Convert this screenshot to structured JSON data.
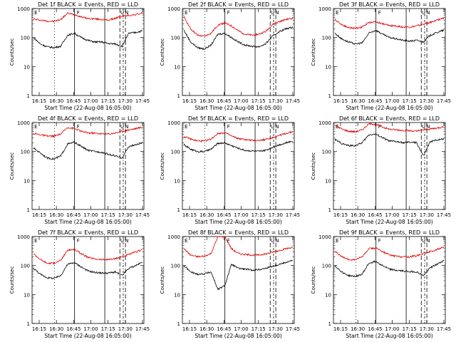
{
  "chart_data": [
    {
      "type": "line",
      "title": "Det 1f BLACK = Events, RED = LLD",
      "xlabel": "Start Time (22-Aug-08 16:05:00)",
      "ylabel": "Counts/sec",
      "yscale": "log",
      "ylim": [
        1,
        1000
      ],
      "xticks": [
        "16:15",
        "16:30",
        "16:45",
        "17:00",
        "17:15",
        "17:30",
        "17:45"
      ],
      "yticks": [
        "1",
        "10",
        "100",
        "1000"
      ],
      "markers": [
        "E",
        "F",
        "U",
        "N"
      ],
      "series": [
        {
          "color": "#e00000",
          "values": [
            430,
            400,
            370,
            360,
            420,
            690,
            620,
            520,
            450,
            440,
            420,
            400,
            460,
            540,
            580,
            620,
            700
          ]
        },
        {
          "color": "#000000",
          "values": [
            100,
            60,
            48,
            45,
            50,
            120,
            140,
            100,
            80,
            70,
            70,
            62,
            60,
            50,
            140,
            150,
            170
          ]
        }
      ]
    },
    {
      "type": "line",
      "title": "Det 2f BLACK = Events, RED = LLD",
      "xlabel": "Start Time (22-Aug-08 16:05:00)",
      "ylabel": "Counts/sec",
      "yscale": "log",
      "ylim": [
        1,
        1000
      ],
      "xticks": [
        "16:15",
        "16:30",
        "16:45",
        "17:00",
        "17:15",
        "17:30",
        "17:45"
      ],
      "yticks": [
        "1",
        "10",
        "100",
        "1000"
      ],
      "markers": [
        "E",
        "F",
        "U",
        "N"
      ],
      "series": [
        {
          "color": "#e00000",
          "values": [
            520,
            200,
            120,
            110,
            140,
            270,
            320,
            250,
            170,
            130,
            120,
            130,
            160,
            280,
            350,
            420,
            460
          ]
        },
        {
          "color": "#000000",
          "values": [
            180,
            70,
            45,
            40,
            55,
            130,
            140,
            100,
            70,
            55,
            50,
            48,
            60,
            110,
            160,
            200,
            230
          ]
        }
      ]
    },
    {
      "type": "line",
      "title": "Det 3f BLACK = Events, RED = LLD",
      "xlabel": "Start Time (22-Aug-08 16:05:00)",
      "ylabel": "Counts/sec",
      "yscale": "log",
      "ylim": [
        1,
        1000
      ],
      "xticks": [
        "16:15",
        "16:30",
        "16:45",
        "17:00",
        "17:15",
        "17:30",
        "17:45"
      ],
      "yticks": [
        "1",
        "10",
        "100",
        "1000"
      ],
      "markers": [
        "E",
        "F",
        "U",
        "N"
      ],
      "series": [
        {
          "color": "#e00000",
          "values": [
            420,
            280,
            220,
            210,
            230,
            330,
            350,
            300,
            260,
            250,
            230,
            230,
            250,
            290,
            330,
            400,
            480
          ]
        },
        {
          "color": "#000000",
          "values": [
            140,
            90,
            70,
            60,
            65,
            140,
            180,
            130,
            100,
            90,
            80,
            75,
            80,
            70,
            120,
            150,
            180
          ]
        }
      ]
    },
    {
      "type": "line",
      "title": "Det 4f BLACK = Events, RED = LLD",
      "xlabel": "Start Time (22-Aug-08 16:05:00)",
      "ylabel": "Counts/sec",
      "yscale": "log",
      "ylim": [
        1,
        1000
      ],
      "xticks": [
        "16:15",
        "16:30",
        "16:45",
        "17:00",
        "17:15",
        "17:30",
        "17:45"
      ],
      "yticks": [
        "1",
        "10",
        "100",
        "1000"
      ],
      "markers": [
        "E",
        "F",
        "U",
        "N"
      ],
      "series": [
        {
          "color": "#e00000",
          "values": [
            420,
            380,
            340,
            340,
            400,
            680,
            620,
            500,
            440,
            430,
            410,
            400,
            440,
            500,
            560,
            620,
            690
          ]
        },
        {
          "color": "#000000",
          "values": [
            130,
            90,
            60,
            55,
            70,
            180,
            210,
            150,
            110,
            100,
            95,
            80,
            70,
            60,
            150,
            170,
            200
          ]
        }
      ]
    },
    {
      "type": "line",
      "title": "Det 5f BLACK = Events, RED = LLD",
      "xlabel": "Start Time (22-Aug-08 16:05:00)",
      "ylabel": "Counts/sec",
      "yscale": "log",
      "ylim": [
        1,
        1000
      ],
      "xticks": [
        "16:15",
        "16:30",
        "16:45",
        "17:00",
        "17:15",
        "17:30",
        "17:45"
      ],
      "yticks": [
        "1",
        "10",
        "100",
        "1000"
      ],
      "markers": [
        "E",
        "F",
        "U",
        "N"
      ],
      "series": [
        {
          "color": "#e00000",
          "values": [
            330,
            270,
            230,
            230,
            270,
            420,
            450,
            340,
            280,
            260,
            240,
            240,
            260,
            300,
            360,
            420,
            480
          ]
        },
        {
          "color": "#000000",
          "values": [
            170,
            120,
            100,
            100,
            120,
            190,
            200,
            160,
            130,
            110,
            105,
            100,
            110,
            140,
            170,
            200,
            230
          ]
        }
      ]
    },
    {
      "type": "line",
      "title": "Det 6f BLACK = Events, RED = LLD",
      "xlabel": "Start Time (22-Aug-08 16:05:00)",
      "ylabel": "Counts/sec",
      "yscale": "log",
      "ylim": [
        1,
        1000
      ],
      "xticks": [
        "16:15",
        "16:30",
        "16:45",
        "17:00",
        "17:15",
        "17:30",
        "17:45"
      ],
      "yticks": [
        "1",
        "10",
        "100",
        "1000"
      ],
      "markers": [
        "E",
        "F",
        "U",
        "N"
      ],
      "series": [
        {
          "color": "#e00000",
          "values": [
            820,
            600,
            500,
            480,
            560,
            900,
            880,
            700,
            590,
            560,
            540,
            520,
            500,
            560,
            600,
            650,
            720
          ]
        },
        {
          "color": "#000000",
          "values": [
            260,
            190,
            160,
            160,
            200,
            380,
            400,
            300,
            230,
            220,
            200,
            210,
            200,
            70,
            220,
            250,
            280
          ]
        }
      ]
    },
    {
      "type": "line",
      "title": "Det 7f BLACK = Events, RED = LLD",
      "xlabel": "Start Time (22-Aug-08 16:05:00)",
      "ylabel": "Counts/sec",
      "yscale": "log",
      "ylim": [
        1,
        1000
      ],
      "xticks": [
        "16:15",
        "16:30",
        "16:45",
        "17:00",
        "17:15",
        "17:30",
        "17:45"
      ],
      "yticks": [
        "1",
        "10",
        "100",
        "1000"
      ],
      "markers": [
        "E",
        "F",
        "U",
        "N"
      ],
      "series": [
        {
          "color": "#e00000",
          "values": [
            260,
            160,
            120,
            120,
            150,
            340,
            360,
            260,
            190,
            170,
            160,
            160,
            170,
            200,
            240,
            290,
            360
          ]
        },
        {
          "color": "#000000",
          "values": [
            80,
            50,
            38,
            36,
            45,
            110,
            125,
            90,
            65,
            58,
            55,
            55,
            60,
            45,
            80,
            100,
            130
          ]
        }
      ]
    },
    {
      "type": "line",
      "title": "Det 8f BLACK = Events, RED = LLD",
      "xlabel": "Start Time (22-Aug-08 16:05:00)",
      "ylabel": "Counts/sec",
      "yscale": "log",
      "ylim": [
        1,
        1000
      ],
      "xticks": [
        "16:15",
        "16:30",
        "16:45",
        "17:00",
        "17:15",
        "17:30",
        "17:45"
      ],
      "yticks": [
        "1",
        "10",
        "100",
        "1000"
      ],
      "markers": [
        "E",
        "F",
        "U",
        "N"
      ],
      "series": [
        {
          "color": "#e00000",
          "values": [
            380,
            230,
            200,
            210,
            260,
            1000,
            1000,
            380,
            260,
            240,
            230,
            230,
            250,
            290,
            330,
            380,
            430
          ]
        },
        {
          "color": "#000000",
          "values": [
            100,
            60,
            50,
            52,
            60,
            15,
            20,
            110,
            80,
            75,
            70,
            72,
            80,
            95,
            110,
            130,
            150
          ]
        }
      ]
    },
    {
      "type": "line",
      "title": "Det 9f BLACK = Events, RED = LLD",
      "xlabel": "Start Time (22-Aug-08 16:05:00)",
      "ylabel": "Counts/sec",
      "yscale": "log",
      "ylim": [
        1,
        1000
      ],
      "xticks": [
        "16:15",
        "16:30",
        "16:45",
        "17:00",
        "17:15",
        "17:30",
        "17:45"
      ],
      "yticks": [
        "1",
        "10",
        "100",
        "1000"
      ],
      "markers": [
        "E",
        "F",
        "U",
        "N"
      ],
      "series": [
        {
          "color": "#e00000",
          "values": [
            320,
            200,
            160,
            160,
            200,
            380,
            400,
            300,
            230,
            210,
            200,
            200,
            220,
            260,
            300,
            360,
            420
          ]
        },
        {
          "color": "#000000",
          "values": [
            100,
            60,
            45,
            42,
            50,
            120,
            140,
            100,
            75,
            68,
            65,
            62,
            60,
            45,
            85,
            110,
            150
          ]
        }
      ]
    }
  ]
}
